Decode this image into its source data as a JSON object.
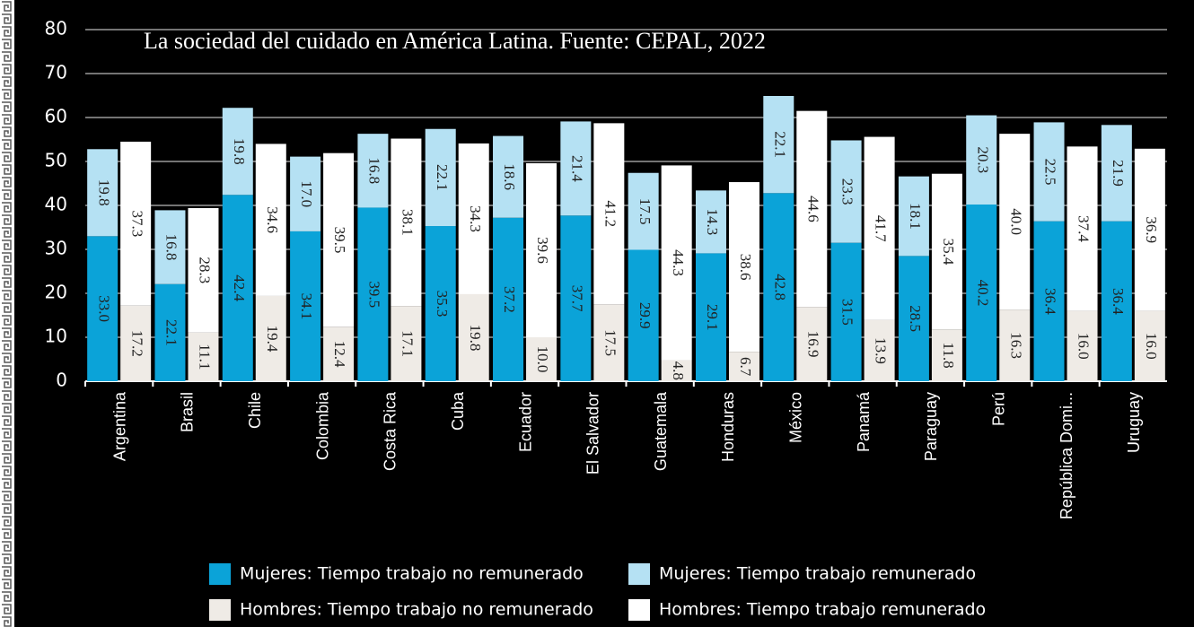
{
  "chart_data": {
    "type": "bar",
    "title": "La sociedad del cuidado en América Latina. Fuente: CEPAL, 2022",
    "categories": [
      "Argentina",
      "Brasil",
      "Chile",
      "Colombia",
      "Costa Rica",
      "Cuba",
      "Ecuador",
      "El Salvador",
      "Guatemala",
      "Honduras",
      "México",
      "Panamá",
      "Paraguay",
      "Perú",
      "República Domi...",
      "Uruguay"
    ],
    "series": [
      {
        "name": "Mujeres: Tiempo trabajo no remunerado",
        "color": "#0ba3d8",
        "values": [
          33.0,
          22.1,
          42.4,
          34.1,
          39.5,
          35.3,
          37.2,
          37.7,
          29.9,
          29.1,
          42.8,
          31.5,
          28.5,
          40.2,
          36.4,
          36.4
        ],
        "value_labels": [
          "33.0",
          "22.1",
          "42.4",
          "34.1",
          "39.5",
          "35.3",
          "37.2",
          "37.7",
          "29.9",
          "29.1",
          "42.8",
          "31.5",
          "28.5",
          "40.2",
          "36.4",
          "36.4"
        ]
      },
      {
        "name": "Mujeres: Tiempo trabajo remunerado",
        "color": "#b5e1f3",
        "values": [
          19.8,
          16.8,
          19.8,
          17.0,
          16.8,
          22.1,
          18.6,
          21.4,
          17.5,
          14.3,
          22.1,
          23.3,
          18.1,
          20.3,
          22.5,
          21.9
        ],
        "value_labels": [
          "19.8",
          "16.8",
          "19.8",
          "17.0",
          "16.8",
          "22.1",
          "18.6",
          "21.4",
          "17.5",
          "14.3",
          "22.1",
          "23.3",
          "18.1",
          "20.3",
          "22.5",
          "21.9"
        ]
      },
      {
        "name": "Hombres: Tiempo trabajo no remunerado",
        "color": "#efebe6",
        "values": [
          17.2,
          11.1,
          19.4,
          12.4,
          17.1,
          19.8,
          10.0,
          17.5,
          4.8,
          6.7,
          16.9,
          13.9,
          11.8,
          16.3,
          16.0,
          16.0
        ],
        "value_labels": [
          "17.2",
          "11.1",
          "19.4",
          "12.4",
          "17.1",
          "19.8",
          "10.0",
          "17.5",
          "4.8",
          "6.7",
          "16.9",
          "13.9",
          "11.8",
          "16.3",
          "16.0",
          "16.0"
        ]
      },
      {
        "name": "Hombres: Tiempo trabajo remunerado",
        "color": "#ffffff",
        "values": [
          37.3,
          28.3,
          34.6,
          39.5,
          38.1,
          34.3,
          39.6,
          41.2,
          44.3,
          38.6,
          44.6,
          41.7,
          35.4,
          40.0,
          37.4,
          36.9
        ],
        "value_labels": [
          "37.3",
          "28.3",
          "34.6",
          "39.5",
          "38.1",
          "34.3",
          "39.6",
          "41.2",
          "44.3",
          "38.6",
          "44.6",
          "41.7",
          "35.4",
          "40.0",
          "37.4",
          "36.9"
        ]
      }
    ],
    "ylim": [
      0,
      80
    ],
    "yticks": [
      0,
      10,
      20,
      30,
      40,
      50,
      60,
      70,
      80
    ],
    "grid": true
  }
}
